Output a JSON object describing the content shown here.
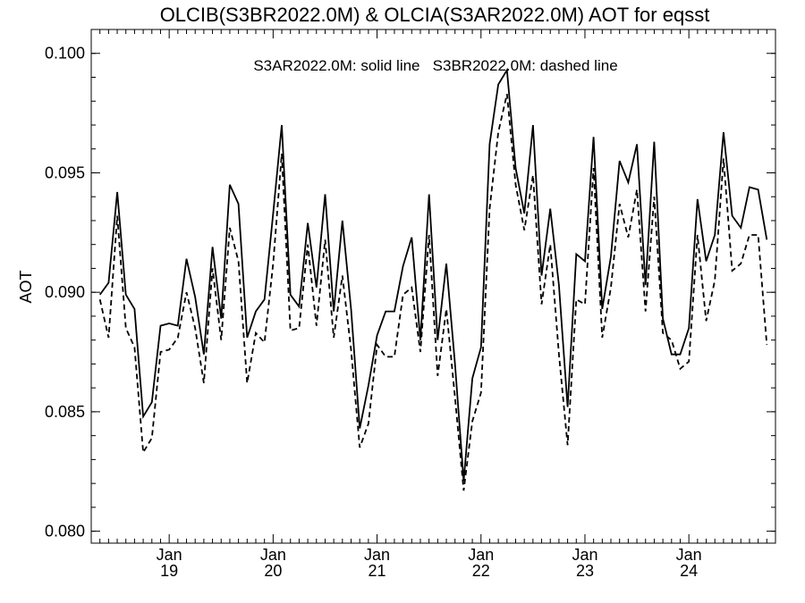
{
  "chart_data": {
    "type": "line",
    "title": "OLCIB(S3BR2022.0M) & OLCIA(S3AR2022.0M)  AOT for eqsst",
    "annotation": "S3AR2022.0M: solid line   S3BR2022.0M: dashed line",
    "ylabel": "AOT",
    "xlabel": "",
    "ylim": [
      0.0795,
      0.101
    ],
    "xlim": [
      "2018-04",
      "2024-11"
    ],
    "y_ticks": [
      "0.080",
      "0.085",
      "0.090",
      "0.095",
      "0.100"
    ],
    "x_tick_labels": [
      {
        "month": "Jan",
        "year": "19"
      },
      {
        "month": "Jan",
        "year": "20"
      },
      {
        "month": "Jan",
        "year": "21"
      },
      {
        "month": "Jan",
        "year": "22"
      },
      {
        "month": "Jan",
        "year": "23"
      },
      {
        "month": "Jan",
        "year": "24"
      }
    ],
    "grid": false,
    "x": [
      "2018-05",
      "2018-06",
      "2018-07",
      "2018-08",
      "2018-09",
      "2018-10",
      "2018-11",
      "2018-12",
      "2019-01",
      "2019-02",
      "2019-03",
      "2019-04",
      "2019-05",
      "2019-06",
      "2019-07",
      "2019-08",
      "2019-09",
      "2019-10",
      "2019-11",
      "2019-12",
      "2020-01",
      "2020-02",
      "2020-03",
      "2020-04",
      "2020-05",
      "2020-06",
      "2020-07",
      "2020-08",
      "2020-09",
      "2020-10",
      "2020-11",
      "2020-12",
      "2021-01",
      "2021-02",
      "2021-03",
      "2021-04",
      "2021-05",
      "2021-06",
      "2021-07",
      "2021-08",
      "2021-09",
      "2021-10",
      "2021-11",
      "2021-12",
      "2022-01",
      "2022-02",
      "2022-03",
      "2022-04",
      "2022-05",
      "2022-06",
      "2022-07",
      "2022-08",
      "2022-09",
      "2022-10",
      "2022-11",
      "2022-12",
      "2023-01",
      "2023-02",
      "2023-03",
      "2023-04",
      "2023-05",
      "2023-06",
      "2023-07",
      "2023-08",
      "2023-09",
      "2023-10",
      "2023-11",
      "2023-12",
      "2024-01",
      "2024-02",
      "2024-03",
      "2024-04",
      "2024-05",
      "2024-06",
      "2024-07",
      "2024-08",
      "2024-09",
      "2024-10"
    ],
    "series": [
      {
        "name": "S3AR2022.0M",
        "style": "solid",
        "values": [
          0.0899,
          0.0904,
          0.0942,
          0.0899,
          0.0893,
          0.0848,
          0.0854,
          0.0886,
          0.0887,
          0.0886,
          0.0914,
          0.0898,
          0.0874,
          0.0919,
          0.0889,
          0.0945,
          0.0937,
          0.0881,
          0.0892,
          0.0897,
          0.0933,
          0.097,
          0.0899,
          0.0894,
          0.0929,
          0.0902,
          0.0941,
          0.0892,
          0.093,
          0.0893,
          0.0843,
          0.0861,
          0.0882,
          0.0892,
          0.0892,
          0.0911,
          0.0923,
          0.088,
          0.0941,
          0.088,
          0.0912,
          0.087,
          0.0821,
          0.0864,
          0.0877,
          0.0962,
          0.0987,
          0.0993,
          0.0952,
          0.0933,
          0.097,
          0.0907,
          0.0935,
          0.0903,
          0.0852,
          0.0916,
          0.0913,
          0.0965,
          0.0893,
          0.0915,
          0.0955,
          0.0946,
          0.0962,
          0.0903,
          0.0963,
          0.0889,
          0.0874,
          0.0874,
          0.0885,
          0.0939,
          0.0913,
          0.0924,
          0.0967,
          0.0932,
          0.0927,
          0.0944,
          0.0943,
          0.0922
        ]
      },
      {
        "name": "S3BR2022.0M",
        "style": "dashed",
        "values": [
          0.0897,
          0.0881,
          0.0932,
          0.0885,
          0.0877,
          0.0833,
          0.0839,
          0.0875,
          0.0876,
          0.0881,
          0.09,
          0.0885,
          0.0862,
          0.091,
          0.088,
          0.0927,
          0.0913,
          0.0862,
          0.0883,
          0.0879,
          0.0912,
          0.0958,
          0.0884,
          0.0885,
          0.092,
          0.0886,
          0.0922,
          0.0881,
          0.0907,
          0.0876,
          0.0835,
          0.0845,
          0.0878,
          0.0873,
          0.0873,
          0.0899,
          0.0902,
          0.0875,
          0.0924,
          0.0865,
          0.0893,
          0.0856,
          0.0817,
          0.0846,
          0.0858,
          0.0935,
          0.0967,
          0.0983,
          0.0945,
          0.0926,
          0.0949,
          0.0895,
          0.092,
          0.0874,
          0.0836,
          0.0897,
          0.0895,
          0.0952,
          0.0881,
          0.0902,
          0.0937,
          0.0923,
          0.0943,
          0.0892,
          0.094,
          0.0883,
          0.088,
          0.0868,
          0.0871,
          0.0924,
          0.0888,
          0.0905,
          0.0956,
          0.0909,
          0.0912,
          0.0924,
          0.0924,
          0.0878
        ]
      }
    ]
  }
}
